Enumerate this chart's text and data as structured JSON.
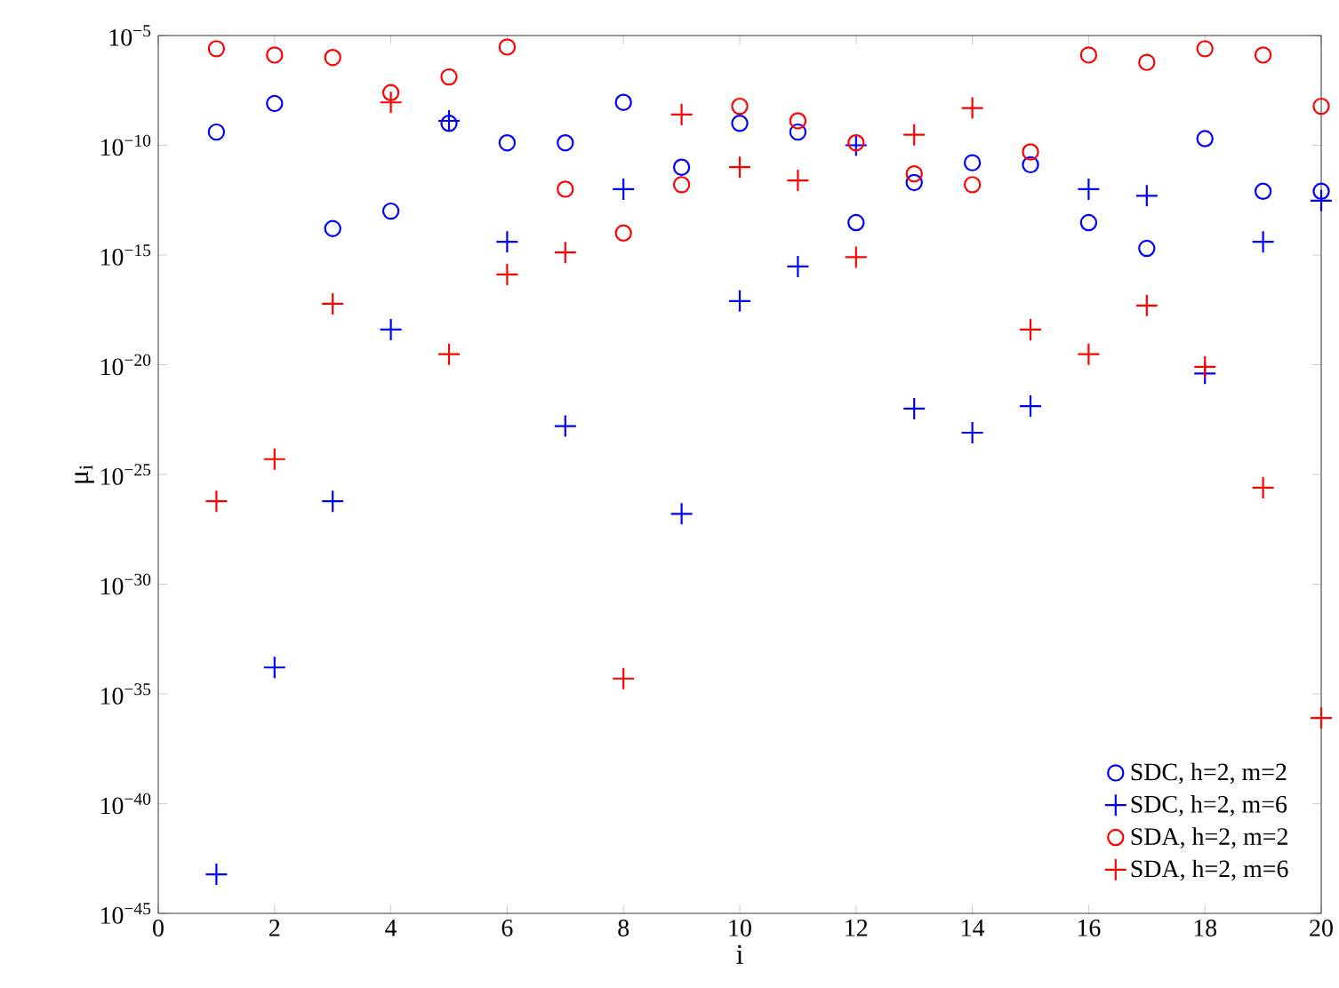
{
  "chart_data": {
    "type": "scatter",
    "xlabel": "i",
    "ylabel": "μ$_{i}$",
    "log": "y",
    "grid": false,
    "legend": "bottom right",
    "x": [
      1,
      2,
      3,
      4,
      5,
      6,
      7,
      8,
      9,
      10,
      11,
      12,
      13,
      14,
      15,
      16,
      17,
      18,
      19,
      20
    ],
    "xlim": [
      0,
      20
    ],
    "xticks": [
      0,
      2,
      4,
      6,
      8,
      10,
      12,
      14,
      16,
      18,
      20
    ],
    "ylim": [
      1e-45,
      1e-05
    ],
    "yticks": [
      {
        "value": 1e-45,
        "label": "10$^{−45}$"
      },
      {
        "value": 1e-40,
        "label": "10$^{−40}$"
      },
      {
        "value": 1e-35,
        "label": "10$^{−35}$"
      },
      {
        "value": 1e-30,
        "label": "10$^{−30}$"
      },
      {
        "value": 1e-25,
        "label": "10$^{−25}$"
      },
      {
        "value": 1e-20,
        "label": "10$^{−20}$"
      },
      {
        "value": 1e-15,
        "label": "10$^{−15}$"
      },
      {
        "value": 1e-10,
        "label": "10$^{−10}$"
      },
      {
        "value": 1e-05,
        "label": "10$^{−5}$"
      }
    ],
    "series": [
      {
        "name": "SDC, h=2, m=2",
        "color": "#0000ff",
        "marker": "circle",
        "values": [
          4e-10,
          8e-09,
          1.6e-14,
          1e-13,
          1e-09,
          1.3e-10,
          1.3e-10,
          9e-09,
          1e-11,
          1e-09,
          4e-10,
          3e-14,
          2e-12,
          1.6e-11,
          1.3e-11,
          3e-14,
          2e-15,
          2e-10,
          8e-13,
          8e-13
        ]
      },
      {
        "name": "SDC, h=2, m=6",
        "color": "#0000ff",
        "marker": "cross",
        "values": [
          6e-44,
          1.6e-34,
          6e-27,
          4e-19,
          1.3e-09,
          4e-15,
          1.6e-23,
          1e-12,
          1.6e-27,
          8e-18,
          3e-16,
          1e-10,
          1e-22,
          8e-24,
          1.3e-22,
          1e-12,
          5e-13,
          4e-21,
          4e-15,
          3e-13
        ]
      },
      {
        "name": "SDA, h=2, m=2",
        "color": "#ff0000",
        "marker": "circle",
        "values": [
          2.5e-06,
          1.3e-06,
          1e-06,
          2.5e-08,
          1.3e-07,
          3e-06,
          1e-12,
          1e-14,
          1.6e-12,
          6e-09,
          1.3e-09,
          1.3e-10,
          5e-12,
          1.6e-12,
          5e-11,
          1.3e-06,
          6e-07,
          2.5e-06,
          1.3e-06,
          6e-09
        ]
      },
      {
        "name": "SDA, h=2, m=6",
        "color": "#ff0000",
        "marker": "cross",
        "values": [
          6e-27,
          5e-25,
          6e-18,
          9e-09,
          3e-20,
          1.3e-16,
          1.3e-15,
          5e-35,
          2.5e-09,
          1e-11,
          2.5e-12,
          8e-16,
          3e-10,
          5e-09,
          4e-19,
          3e-20,
          5e-18,
          8e-21,
          2.5e-26,
          8e-37
        ]
      }
    ]
  }
}
